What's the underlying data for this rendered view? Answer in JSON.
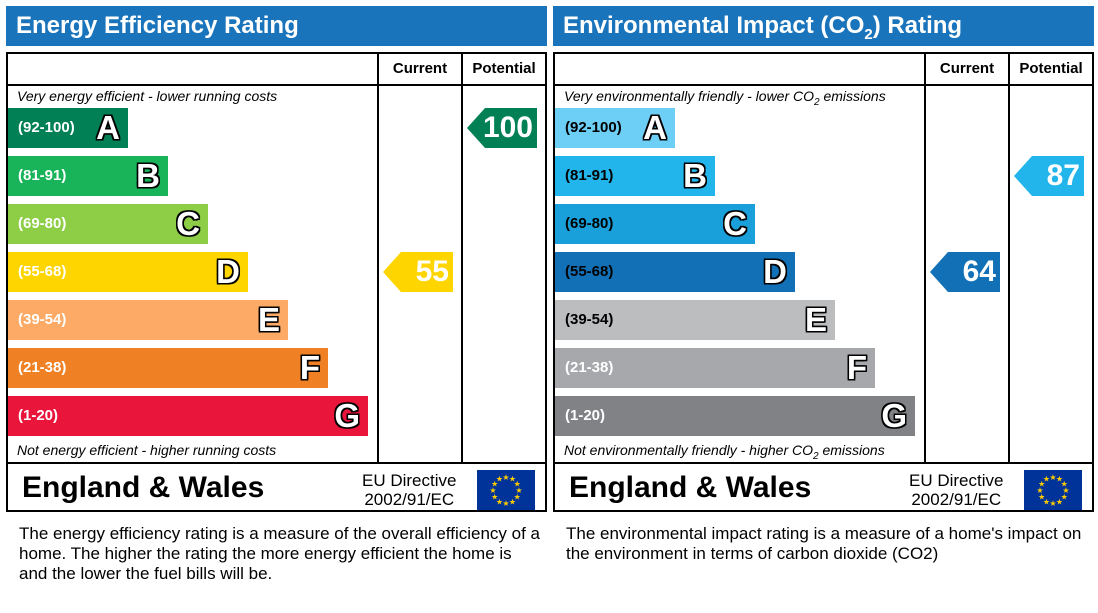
{
  "chart_data": [
    {
      "type": "bar",
      "title": "Energy Efficiency Rating",
      "columns": [
        "Current",
        "Potential"
      ],
      "top_note": "Very energy efficient - lower running costs",
      "bottom_note": "Not energy efficient - higher running costs",
      "bands": [
        {
          "range": "(92-100)",
          "letter": "A",
          "color": "#008054"
        },
        {
          "range": "(81-91)",
          "letter": "B",
          "color": "#19b459"
        },
        {
          "range": "(69-80)",
          "letter": "C",
          "color": "#8dce46"
        },
        {
          "range": "(55-68)",
          "letter": "D",
          "color": "#ffd500"
        },
        {
          "range": "(39-54)",
          "letter": "E",
          "color": "#fcaa65"
        },
        {
          "range": "(21-38)",
          "letter": "F",
          "color": "#ef8023"
        },
        {
          "range": "(1-20)",
          "letter": "G",
          "color": "#e9153b"
        }
      ],
      "current": {
        "value": 55,
        "band_index": 3,
        "color": "#ffd500"
      },
      "potential": {
        "value": 100,
        "band_index": 0,
        "color": "#008054"
      },
      "country": "England & Wales",
      "directive_line1": "EU Directive",
      "directive_line2": "2002/91/EC",
      "description": "The energy efficiency rating is a measure of the overall efficiency of a home.  The higher the rating the more energy efficient the home is and the lower the fuel bills will be."
    },
    {
      "type": "bar",
      "title_pre": "Environmental Impact (CO",
      "title_sub": "2",
      "title_post": ") Rating",
      "columns": [
        "Current",
        "Potential"
      ],
      "top_note_pre": "Very environmentally friendly - lower CO",
      "top_note_sub": "2",
      "top_note_post": " emissions",
      "bottom_note_pre": "Not environmentally friendly - higher CO",
      "bottom_note_sub": "2",
      "bottom_note_post": " emissions",
      "bands": [
        {
          "range": "(92-100)",
          "letter": "A",
          "color": "#6ecff6"
        },
        {
          "range": "(81-91)",
          "letter": "B",
          "color": "#22b5eb"
        },
        {
          "range": "(69-80)",
          "letter": "C",
          "color": "#199fd9"
        },
        {
          "range": "(55-68)",
          "letter": "D",
          "color": "#1270b7"
        },
        {
          "range": "(39-54)",
          "letter": "E",
          "color": "#bbbdbf"
        },
        {
          "range": "(21-38)",
          "letter": "F",
          "color": "#a6a8ab"
        },
        {
          "range": "(1-20)",
          "letter": "G",
          "color": "#808285"
        }
      ],
      "current": {
        "value": 64,
        "band_index": 3,
        "color": "#1270b7"
      },
      "potential": {
        "value": 87,
        "band_index": 1,
        "color": "#22b5eb"
      },
      "country": "England & Wales",
      "directive_line1": "EU Directive",
      "directive_line2": "2002/91/EC",
      "description": "The environmental impact rating is a measure of a home's impact on the environment in terms of carbon dioxide (CO2)"
    }
  ]
}
